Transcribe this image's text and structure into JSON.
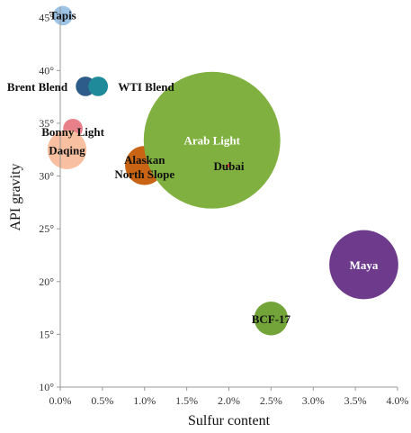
{
  "chart_data": {
    "type": "scatter",
    "subtype": "bubble",
    "title": "",
    "xlabel": "Sulfur content",
    "ylabel": "API gravity",
    "xlim": [
      0,
      4.0
    ],
    "ylim": [
      10,
      46
    ],
    "x_ticks": [
      0,
      0.5,
      1.0,
      1.5,
      2.0,
      2.5,
      3.0,
      3.5,
      4.0
    ],
    "x_tick_labels": [
      "0.0%",
      "0.5%",
      "1.0%",
      "1.5%",
      "2.0%",
      "2.5%",
      "3.0%",
      "3.5%",
      "4.0%"
    ],
    "y_ticks": [
      10,
      15,
      20,
      25,
      30,
      35,
      40,
      45
    ],
    "y_tick_labels": [
      "10°",
      "15°",
      "20°",
      "25°",
      "30°",
      "35°",
      "40°",
      "45°"
    ],
    "grid": false,
    "legend": "none",
    "points": [
      {
        "label": "Tapis",
        "x": 0.03,
        "y": 45.2,
        "size": 1.0,
        "color": "#9dc3e6",
        "label_color": "#111111"
      },
      {
        "label": "Brent Blend",
        "x": 0.3,
        "y": 38.5,
        "size": 1.0,
        "color": "#2e5c8a",
        "label_color": "#111111"
      },
      {
        "label": "WTI Blend",
        "x": 0.45,
        "y": 38.5,
        "size": 1.0,
        "color": "#1f8a9a",
        "label_color": "#111111"
      },
      {
        "label": "Bonny Light",
        "x": 0.15,
        "y": 34.5,
        "size": 1.0,
        "color": "#e8808a",
        "label_color": "#111111"
      },
      {
        "label": "Daqing",
        "x": 0.08,
        "y": 32.5,
        "size": 4.0,
        "color": "#f8c0a0",
        "label_color": "#111111"
      },
      {
        "label": "Alaskan North Slope",
        "x": 1.0,
        "y": 31.0,
        "size": 4.0,
        "color": "#c86414",
        "label_color": "#111111"
      },
      {
        "label": "Arab Light",
        "x": 1.8,
        "y": 33.4,
        "size": 49.0,
        "color": "#80b040",
        "label_color": "#ffffff"
      },
      {
        "label": "Dubai",
        "x": 2.0,
        "y": 31.0,
        "size": 0.02,
        "color": "#e74c3c",
        "label_color": "#111111"
      },
      {
        "label": "Maya",
        "x": 3.6,
        "y": 21.6,
        "size": 12.5,
        "color": "#6d3a8c",
        "label_color": "#ffffff"
      },
      {
        "label": "BCF-17",
        "x": 2.5,
        "y": 16.5,
        "size": 3.0,
        "color": "#72a43a",
        "label_color": "#111111"
      }
    ]
  }
}
